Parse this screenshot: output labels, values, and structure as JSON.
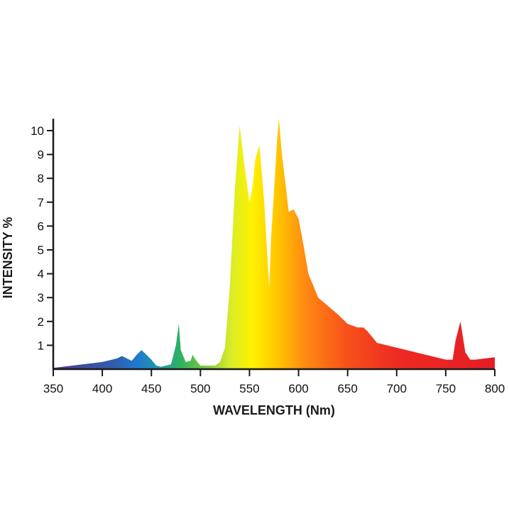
{
  "chart_data": {
    "type": "area",
    "title": "",
    "xlabel": "WAVELENGTH (Nm)",
    "ylabel": "INTENSITY %",
    "xlim": [
      350,
      800
    ],
    "ylim": [
      0,
      10.5
    ],
    "grid": false,
    "legend": "none",
    "x_ticks": [
      350,
      400,
      450,
      500,
      550,
      600,
      650,
      700,
      750,
      800
    ],
    "y_ticks": [
      1,
      2,
      3,
      4,
      5,
      6,
      7,
      8,
      9,
      10
    ],
    "fill": "visible-spectrum gradient",
    "series": [
      {
        "x": [
          350,
          380,
          400,
          410,
          415,
          420,
          430,
          435,
          440,
          445,
          450,
          455,
          460,
          470,
          475,
          478,
          480,
          485,
          490,
          492,
          495,
          500,
          515,
          520,
          525,
          530,
          535,
          540,
          545,
          550,
          553,
          556,
          560,
          565,
          570,
          572,
          575,
          578,
          580,
          583,
          586,
          590,
          595,
          600,
          605,
          610,
          620,
          640,
          650,
          660,
          666,
          670,
          680,
          700,
          720,
          740,
          750,
          757,
          760,
          765,
          770,
          775,
          780,
          800
        ],
        "y": [
          0.05,
          0.2,
          0.3,
          0.4,
          0.45,
          0.55,
          0.35,
          0.6,
          0.8,
          0.6,
          0.4,
          0.15,
          0.1,
          0.2,
          1.0,
          1.9,
          0.8,
          0.3,
          0.35,
          0.6,
          0.4,
          0.15,
          0.15,
          0.3,
          0.9,
          3.5,
          7.5,
          10.2,
          8.5,
          7.0,
          7.6,
          8.8,
          9.4,
          7.0,
          3.4,
          5.5,
          7.5,
          9.5,
          10.5,
          9.0,
          8.0,
          6.6,
          6.7,
          6.3,
          5.2,
          4.0,
          3.0,
          2.3,
          1.9,
          1.75,
          1.75,
          1.6,
          1.1,
          0.9,
          0.7,
          0.5,
          0.4,
          0.4,
          1.2,
          2.0,
          0.7,
          0.4,
          0.4,
          0.5
        ]
      }
    ]
  }
}
